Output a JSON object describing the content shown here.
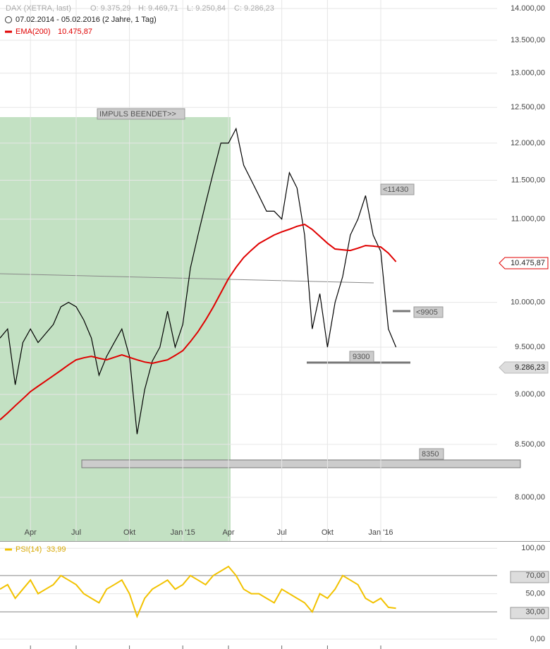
{
  "chart_data": [
    {
      "type": "line",
      "log": true,
      "grid": true,
      "instrument": "DAX (XETRA, last)",
      "ohlc": [
        "O: 9.375,29",
        "H: 9.469,71",
        "L: 9.250,84",
        "C: 9.286,23"
      ],
      "date_range": "07.02.2014 - 05.02.2016 (2 Jahre, 1 Tag)",
      "ema_legend": "EMA(200)",
      "ema_value": "10.475,87",
      "ema_axis_label": "10.475,87",
      "last_axis_label": "9.286,23",
      "annotations": [
        "IMPULS BEENDET>>",
        "<11430",
        "<9905",
        "9300",
        "8350"
      ],
      "categories": [
        null,
        null,
        null,
        null,
        "Apr",
        null,
        null,
        null,
        null,
        null,
        "Jul",
        null,
        null,
        null,
        null,
        null,
        null,
        "Okt",
        null,
        null,
        null,
        null,
        null,
        null,
        "Jan '15",
        null,
        null,
        null,
        null,
        null,
        "Apr",
        null,
        null,
        null,
        null,
        null,
        null,
        "Jul",
        null,
        null,
        null,
        null,
        null,
        "Okt",
        null,
        null,
        null,
        null,
        null,
        null,
        "Jan '16",
        null,
        null
      ],
      "series": [
        {
          "name": "DAX (XETRA, last)",
          "color": "#000000",
          "values": [
            9600,
            9700,
            9100,
            9550,
            9700,
            9550,
            9650,
            9750,
            9950,
            10000,
            9950,
            9800,
            9600,
            9200,
            9400,
            9550,
            9700,
            9400,
            8600,
            9050,
            9350,
            9500,
            9900,
            9500,
            9750,
            10400,
            10800,
            11200,
            11600,
            12000,
            12000,
            12200,
            11700,
            11500,
            11300,
            11100,
            11100,
            11000,
            11600,
            11400,
            10800,
            9700,
            10100,
            9500,
            10000,
            10300,
            10800,
            11000,
            11300,
            10800,
            10600,
            9700,
            9500
          ]
        },
        {
          "name": "EMA(200)",
          "color": "#e00000",
          "values": [
            8742,
            8810,
            8884,
            8955,
            9029,
            9085,
            9139,
            9195,
            9251,
            9310,
            9363,
            9385,
            9401,
            9380,
            9363,
            9390,
            9416,
            9390,
            9363,
            9340,
            9326,
            9345,
            9363,
            9410,
            9462,
            9560,
            9670,
            9800,
            9947,
            10110,
            10275,
            10410,
            10527,
            10615,
            10697,
            10750,
            10802,
            10840,
            10873,
            10910,
            10934,
            10870,
            10785,
            10700,
            10630,
            10620,
            10612,
            10640,
            10672,
            10665,
            10655,
            10580,
            10476
          ]
        }
      ],
      "ylim": [
        7609,
        14136
      ],
      "yticks": [
        {
          "value": 8000,
          "label": "8.000,00"
        },
        {
          "value": 8500,
          "label": "8.500,00"
        },
        {
          "value": 9000,
          "label": "9.000,00"
        },
        {
          "value": 9500,
          "label": "9.500,00"
        },
        {
          "value": 10000,
          "label": "10.000,00"
        },
        {
          "value": 11000,
          "label": "11.000,00"
        },
        {
          "value": 11500,
          "label": "11.500,00"
        },
        {
          "value": 12000,
          "label": "12.000,00"
        },
        {
          "value": 12500,
          "label": "12.500,00"
        },
        {
          "value": 13000,
          "label": "13.000,00"
        },
        {
          "value": 13500,
          "label": "13.500,00"
        },
        {
          "value": 14000,
          "label": "14.000,00"
        }
      ]
    },
    {
      "type": "line",
      "grid": true,
      "series": [
        {
          "name": "PSI(14)",
          "color": "#f2c200",
          "value_label": "33,99",
          "values": [
            55,
            60,
            45,
            55,
            65,
            50,
            55,
            60,
            70,
            65,
            60,
            50,
            45,
            40,
            55,
            60,
            65,
            50,
            25,
            45,
            55,
            60,
            65,
            55,
            60,
            70,
            65,
            60,
            70,
            75,
            80,
            70,
            55,
            50,
            50,
            45,
            40,
            55,
            50,
            45,
            40,
            30,
            50,
            45,
            55,
            70,
            65,
            60,
            45,
            40,
            45,
            35,
            34
          ]
        }
      ],
      "ylim": [
        -7,
        108
      ],
      "yticks": [
        {
          "value": 0,
          "label": "0,00"
        },
        {
          "value": 30,
          "label": "30,00"
        },
        {
          "value": 50,
          "label": "50,00"
        },
        {
          "value": 70,
          "label": "70,00"
        },
        {
          "value": 100,
          "label": "100,00"
        }
      ]
    }
  ]
}
